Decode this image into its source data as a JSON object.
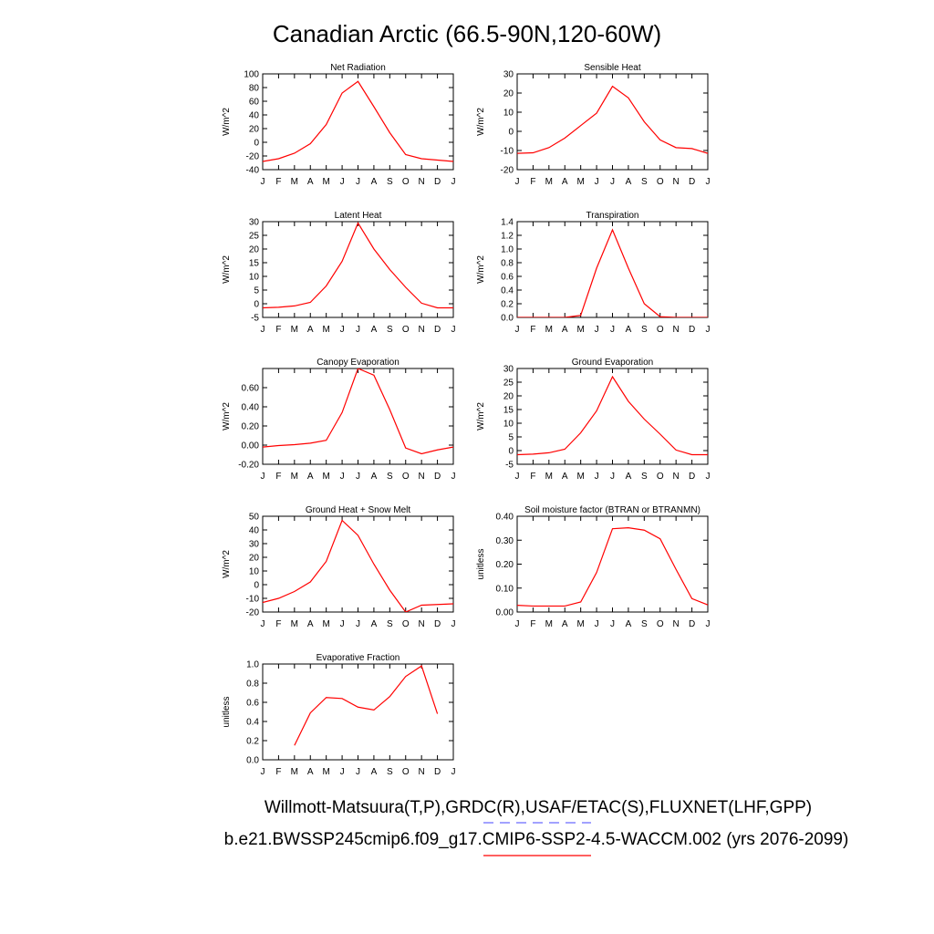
{
  "page": {
    "title": "Canadian Arctic (66.5-90N,120-60W)",
    "legend_line1": "Willmott-Matsuura(T,P),GRDC(R),USAF/ETAC(S),FLUXNET(LHF,GPP)",
    "legend_line2": "b.e21.BWSSP245cmip6.f09_g17.CMIP6-SSP2-4.5-WACCM.002 (yrs 2076-2099)",
    "obs_color": "#6a6aff",
    "model_color": "#ff0000"
  },
  "chart_data": [
    {
      "type": "line",
      "title": "Net Radiation",
      "ylabel": "W/m^2",
      "categories": [
        "J",
        "F",
        "M",
        "A",
        "M",
        "J",
        "J",
        "A",
        "S",
        "O",
        "N",
        "D",
        "J"
      ],
      "ylim": [
        -40,
        100
      ],
      "yticks": [
        -40,
        -20,
        0,
        20,
        40,
        60,
        80,
        100
      ],
      "ytick_labels": [
        "-40",
        "-20",
        "0",
        "20",
        "40",
        "60",
        "80",
        "100"
      ],
      "series": [
        {
          "values": [
            -28,
            -24,
            -16,
            -2,
            26,
            72,
            89,
            52,
            14,
            -18,
            -24,
            -26,
            -28
          ]
        }
      ]
    },
    {
      "type": "line",
      "title": "Sensible Heat",
      "ylabel": "W/m^2",
      "categories": [
        "J",
        "F",
        "M",
        "A",
        "M",
        "J",
        "J",
        "A",
        "S",
        "O",
        "N",
        "D",
        "J"
      ],
      "ylim": [
        -20,
        30
      ],
      "yticks": [
        -20,
        -10,
        0,
        10,
        20,
        30
      ],
      "ytick_labels": [
        "-20",
        "-10",
        "0",
        "10",
        "20",
        "30"
      ],
      "series": [
        {
          "values": [
            -11.5,
            -11.2,
            -8.5,
            -3.5,
            3,
            9.5,
            23.5,
            17.5,
            5,
            -4.5,
            -8.5,
            -9,
            -11.5
          ]
        }
      ]
    },
    {
      "type": "line",
      "title": "Latent Heat",
      "ylabel": "W/m^2",
      "categories": [
        "J",
        "F",
        "M",
        "A",
        "M",
        "J",
        "J",
        "A",
        "S",
        "O",
        "N",
        "D",
        "J"
      ],
      "ylim": [
        -5,
        30
      ],
      "yticks": [
        -5,
        0,
        5,
        10,
        15,
        20,
        25,
        30
      ],
      "ytick_labels": [
        "-5",
        "0",
        "5",
        "10",
        "15",
        "20",
        "25",
        "30"
      ],
      "series": [
        {
          "values": [
            -1.5,
            -1.3,
            -0.8,
            0.5,
            6.5,
            15.5,
            29.5,
            20,
            12.5,
            6,
            0.2,
            -1.5,
            -1.5
          ]
        }
      ]
    },
    {
      "type": "line",
      "title": "Transpiration",
      "ylabel": "W/m^2",
      "categories": [
        "J",
        "F",
        "M",
        "A",
        "M",
        "J",
        "J",
        "A",
        "S",
        "O",
        "N",
        "D",
        "J"
      ],
      "ylim": [
        0,
        1.4
      ],
      "yticks": [
        0,
        0.2,
        0.4,
        0.6,
        0.8,
        1.0,
        1.2,
        1.4
      ],
      "ytick_labels": [
        "0.0",
        "0.2",
        "0.4",
        "0.6",
        "0.8",
        "1.0",
        "1.2",
        "1.4"
      ],
      "series": [
        {
          "values": [
            0,
            0,
            0,
            0,
            0.03,
            0.72,
            1.28,
            0.72,
            0.2,
            0.01,
            0,
            0,
            0
          ]
        }
      ]
    },
    {
      "type": "line",
      "title": "Canopy Evaporation",
      "ylabel": "W/m^2",
      "categories": [
        "J",
        "F",
        "M",
        "A",
        "M",
        "J",
        "J",
        "A",
        "S",
        "O",
        "N",
        "D",
        "J"
      ],
      "ylim": [
        -0.2,
        0.8
      ],
      "yticks": [
        -0.2,
        0,
        0.2,
        0.4,
        0.6
      ],
      "ytick_labels": [
        "-0.20",
        "0.00",
        "0.20",
        "0.40",
        "0.60"
      ],
      "series": [
        {
          "values": [
            -0.02,
            -0.005,
            0.005,
            0.02,
            0.05,
            0.34,
            0.8,
            0.73,
            0.37,
            -0.03,
            -0.09,
            -0.05,
            -0.02
          ]
        }
      ]
    },
    {
      "type": "line",
      "title": "Ground Evaporation",
      "ylabel": "W/m^2",
      "categories": [
        "J",
        "F",
        "M",
        "A",
        "M",
        "J",
        "J",
        "A",
        "S",
        "O",
        "N",
        "D",
        "J"
      ],
      "ylim": [
        -5,
        30
      ],
      "yticks": [
        -5,
        0,
        5,
        10,
        15,
        20,
        25,
        30
      ],
      "ytick_labels": [
        "-5",
        "0",
        "5",
        "10",
        "15",
        "20",
        "25",
        "30"
      ],
      "series": [
        {
          "values": [
            -1.5,
            -1.3,
            -0.8,
            0.5,
            6.5,
            14.5,
            27,
            18,
            11.5,
            6,
            0.2,
            -1.5,
            -1.5
          ]
        }
      ]
    },
    {
      "type": "line",
      "title": "Ground Heat + Snow Melt",
      "ylabel": "W/m^2",
      "categories": [
        "J",
        "F",
        "M",
        "A",
        "M",
        "J",
        "J",
        "A",
        "S",
        "O",
        "N",
        "D",
        "J"
      ],
      "ylim": [
        -20,
        50
      ],
      "yticks": [
        -20,
        -10,
        0,
        10,
        20,
        30,
        40,
        50
      ],
      "ytick_labels": [
        "-20",
        "-10",
        "0",
        "10",
        "20",
        "30",
        "40",
        "50"
      ],
      "series": [
        {
          "values": [
            -13,
            -10,
            -5,
            2,
            17,
            47,
            36,
            15,
            -4,
            -20,
            -15,
            -14.5,
            -14
          ]
        }
      ]
    },
    {
      "type": "line",
      "title": "Soil moisture factor (BTRAN or BTRANMN)",
      "ylabel": "unitless",
      "categories": [
        "J",
        "F",
        "M",
        "A",
        "M",
        "J",
        "J",
        "A",
        "S",
        "O",
        "N",
        "D",
        "J"
      ],
      "ylim": [
        0,
        0.4
      ],
      "yticks": [
        0,
        0.1,
        0.2,
        0.3,
        0.4
      ],
      "ytick_labels": [
        "0.00",
        "0.10",
        "0.20",
        "0.30",
        "0.40"
      ],
      "series": [
        {
          "values": [
            0.028,
            0.025,
            0.025,
            0.025,
            0.042,
            0.165,
            0.348,
            0.352,
            0.342,
            0.306,
            0.178,
            0.056,
            0.03
          ]
        }
      ]
    },
    {
      "type": "line",
      "title": "Evaporative Fraction",
      "ylabel": "unitless",
      "categories": [
        "J",
        "F",
        "M",
        "A",
        "M",
        "J",
        "J",
        "A",
        "S",
        "O",
        "N",
        "D",
        "J"
      ],
      "ylim": [
        0,
        1.0
      ],
      "yticks": [
        0,
        0.2,
        0.4,
        0.6,
        0.8,
        1.0
      ],
      "ytick_labels": [
        "0.0",
        "0.2",
        "0.4",
        "0.6",
        "0.8",
        "1.0"
      ],
      "series": [
        {
          "values": [
            null,
            null,
            0.15,
            0.49,
            0.65,
            0.64,
            0.55,
            0.52,
            0.66,
            0.87,
            0.98,
            0.48,
            null
          ]
        }
      ]
    }
  ]
}
